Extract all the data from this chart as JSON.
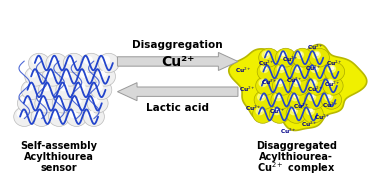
{
  "bg_color": "#ffffff",
  "left_label_line1": "Self-assembly",
  "left_label_line2": "Acylthiourea",
  "left_label_line3": "sensor",
  "right_label_line1": "Disaggregated",
  "right_label_line2": "Acylthiourea-",
  "right_label_line3": "Cu²⁺ complex",
  "top_arrow_label": "Disaggregation",
  "middle_label": "Cu²⁺",
  "bottom_arrow_label": "Lactic acid",
  "fiber_color": "#2244cc",
  "cu_text_color": "#000088",
  "arrow_fill_color": "#d8d8d8",
  "arrow_edge_color": "#999999",
  "right_blob_fill": "#f0f000",
  "right_blob_edge": "#b8b800",
  "sphere_fill": "#f0f0f0",
  "sphere_edge": "#bbbbbb",
  "sphere_highlight": "#ffffff",
  "right_sphere_fill": "#e8e800",
  "right_sphere_edge": "#aaaa00"
}
